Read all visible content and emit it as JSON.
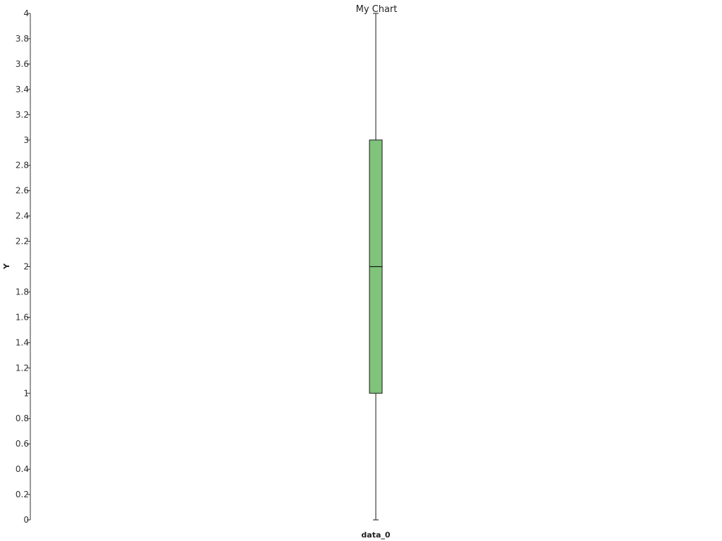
{
  "chart_data": {
    "type": "box",
    "title": "My Chart",
    "xlabel": "",
    "ylabel": "Y",
    "ylim": [
      0,
      4
    ],
    "yticks": [
      0,
      0.2,
      0.4,
      0.6,
      0.8,
      1,
      1.2,
      1.4,
      1.6,
      1.8,
      2,
      2.2,
      2.4,
      2.6,
      2.8,
      3,
      3.2,
      3.4,
      3.6,
      3.8,
      4
    ],
    "categories": [
      "data_0"
    ],
    "boxes": [
      {
        "name": "data_0",
        "min": 0,
        "q1": 1,
        "median": 2,
        "q3": 3,
        "max": 4
      }
    ],
    "grid": false,
    "box_color": "#7fc47a",
    "stroke_color": "#1a1a1a"
  }
}
